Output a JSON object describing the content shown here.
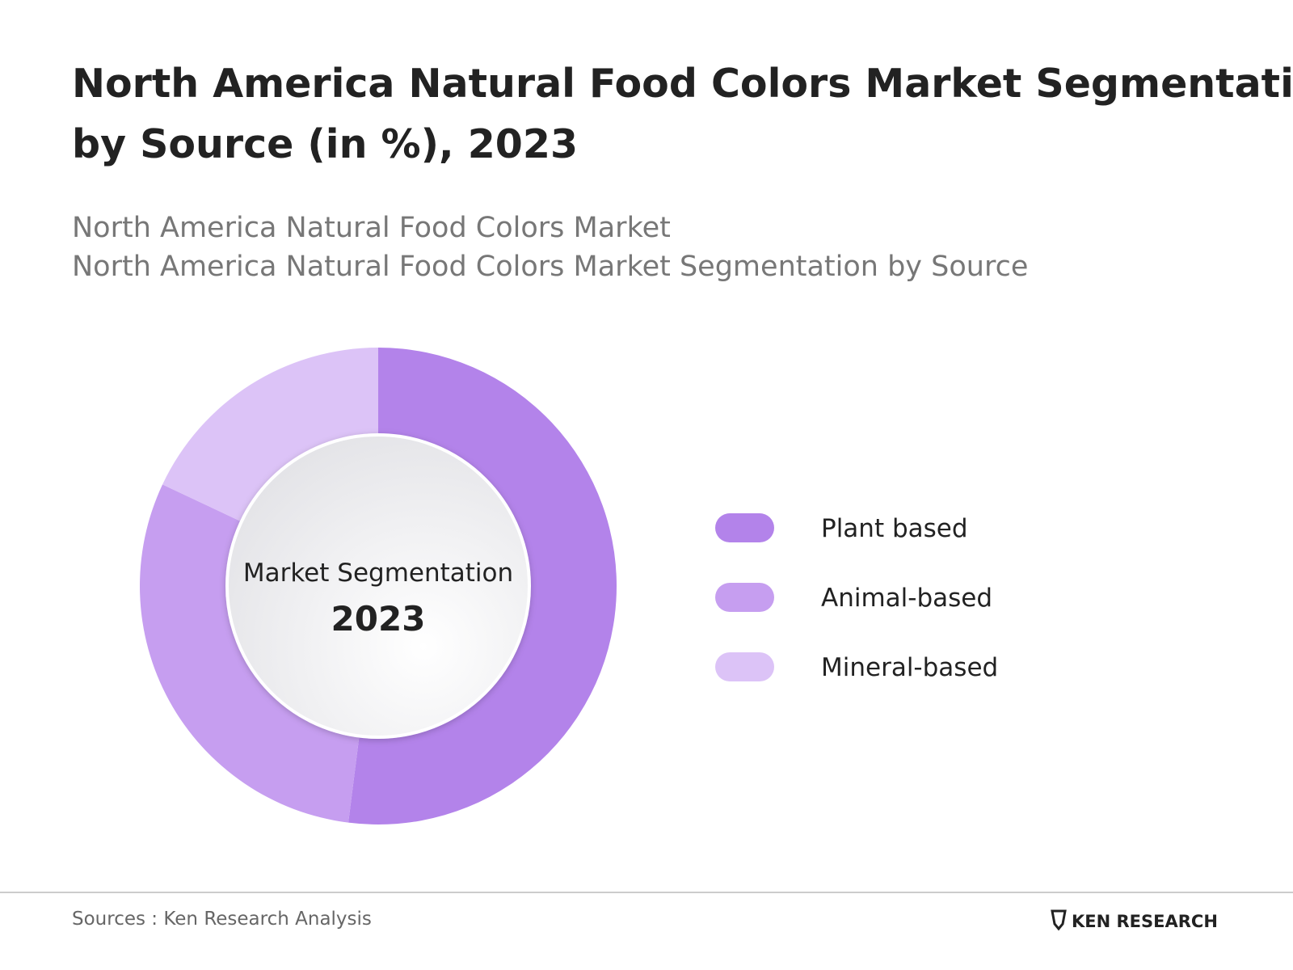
{
  "chart_data": {
    "type": "donut",
    "title": [
      "North America Natural Food Colors Market Segmentation",
      "by Source (in %), 2023"
    ],
    "subtitle": [
      "North America Natural Food Colors Market",
      "North America Natural Food Colors Market Segmentation by Source"
    ],
    "center_label": "Market Segmentation",
    "center_year": "2023",
    "categories": [
      "Plant based",
      "Animal-based",
      "Mineral-based"
    ],
    "values": [
      52,
      30,
      18
    ],
    "colors": [
      "#b383ea",
      "#c69ef0",
      "#dcc3f7"
    ],
    "source": "Sources : Ken Research Analysis",
    "brand": "KEN RESEARCH"
  }
}
